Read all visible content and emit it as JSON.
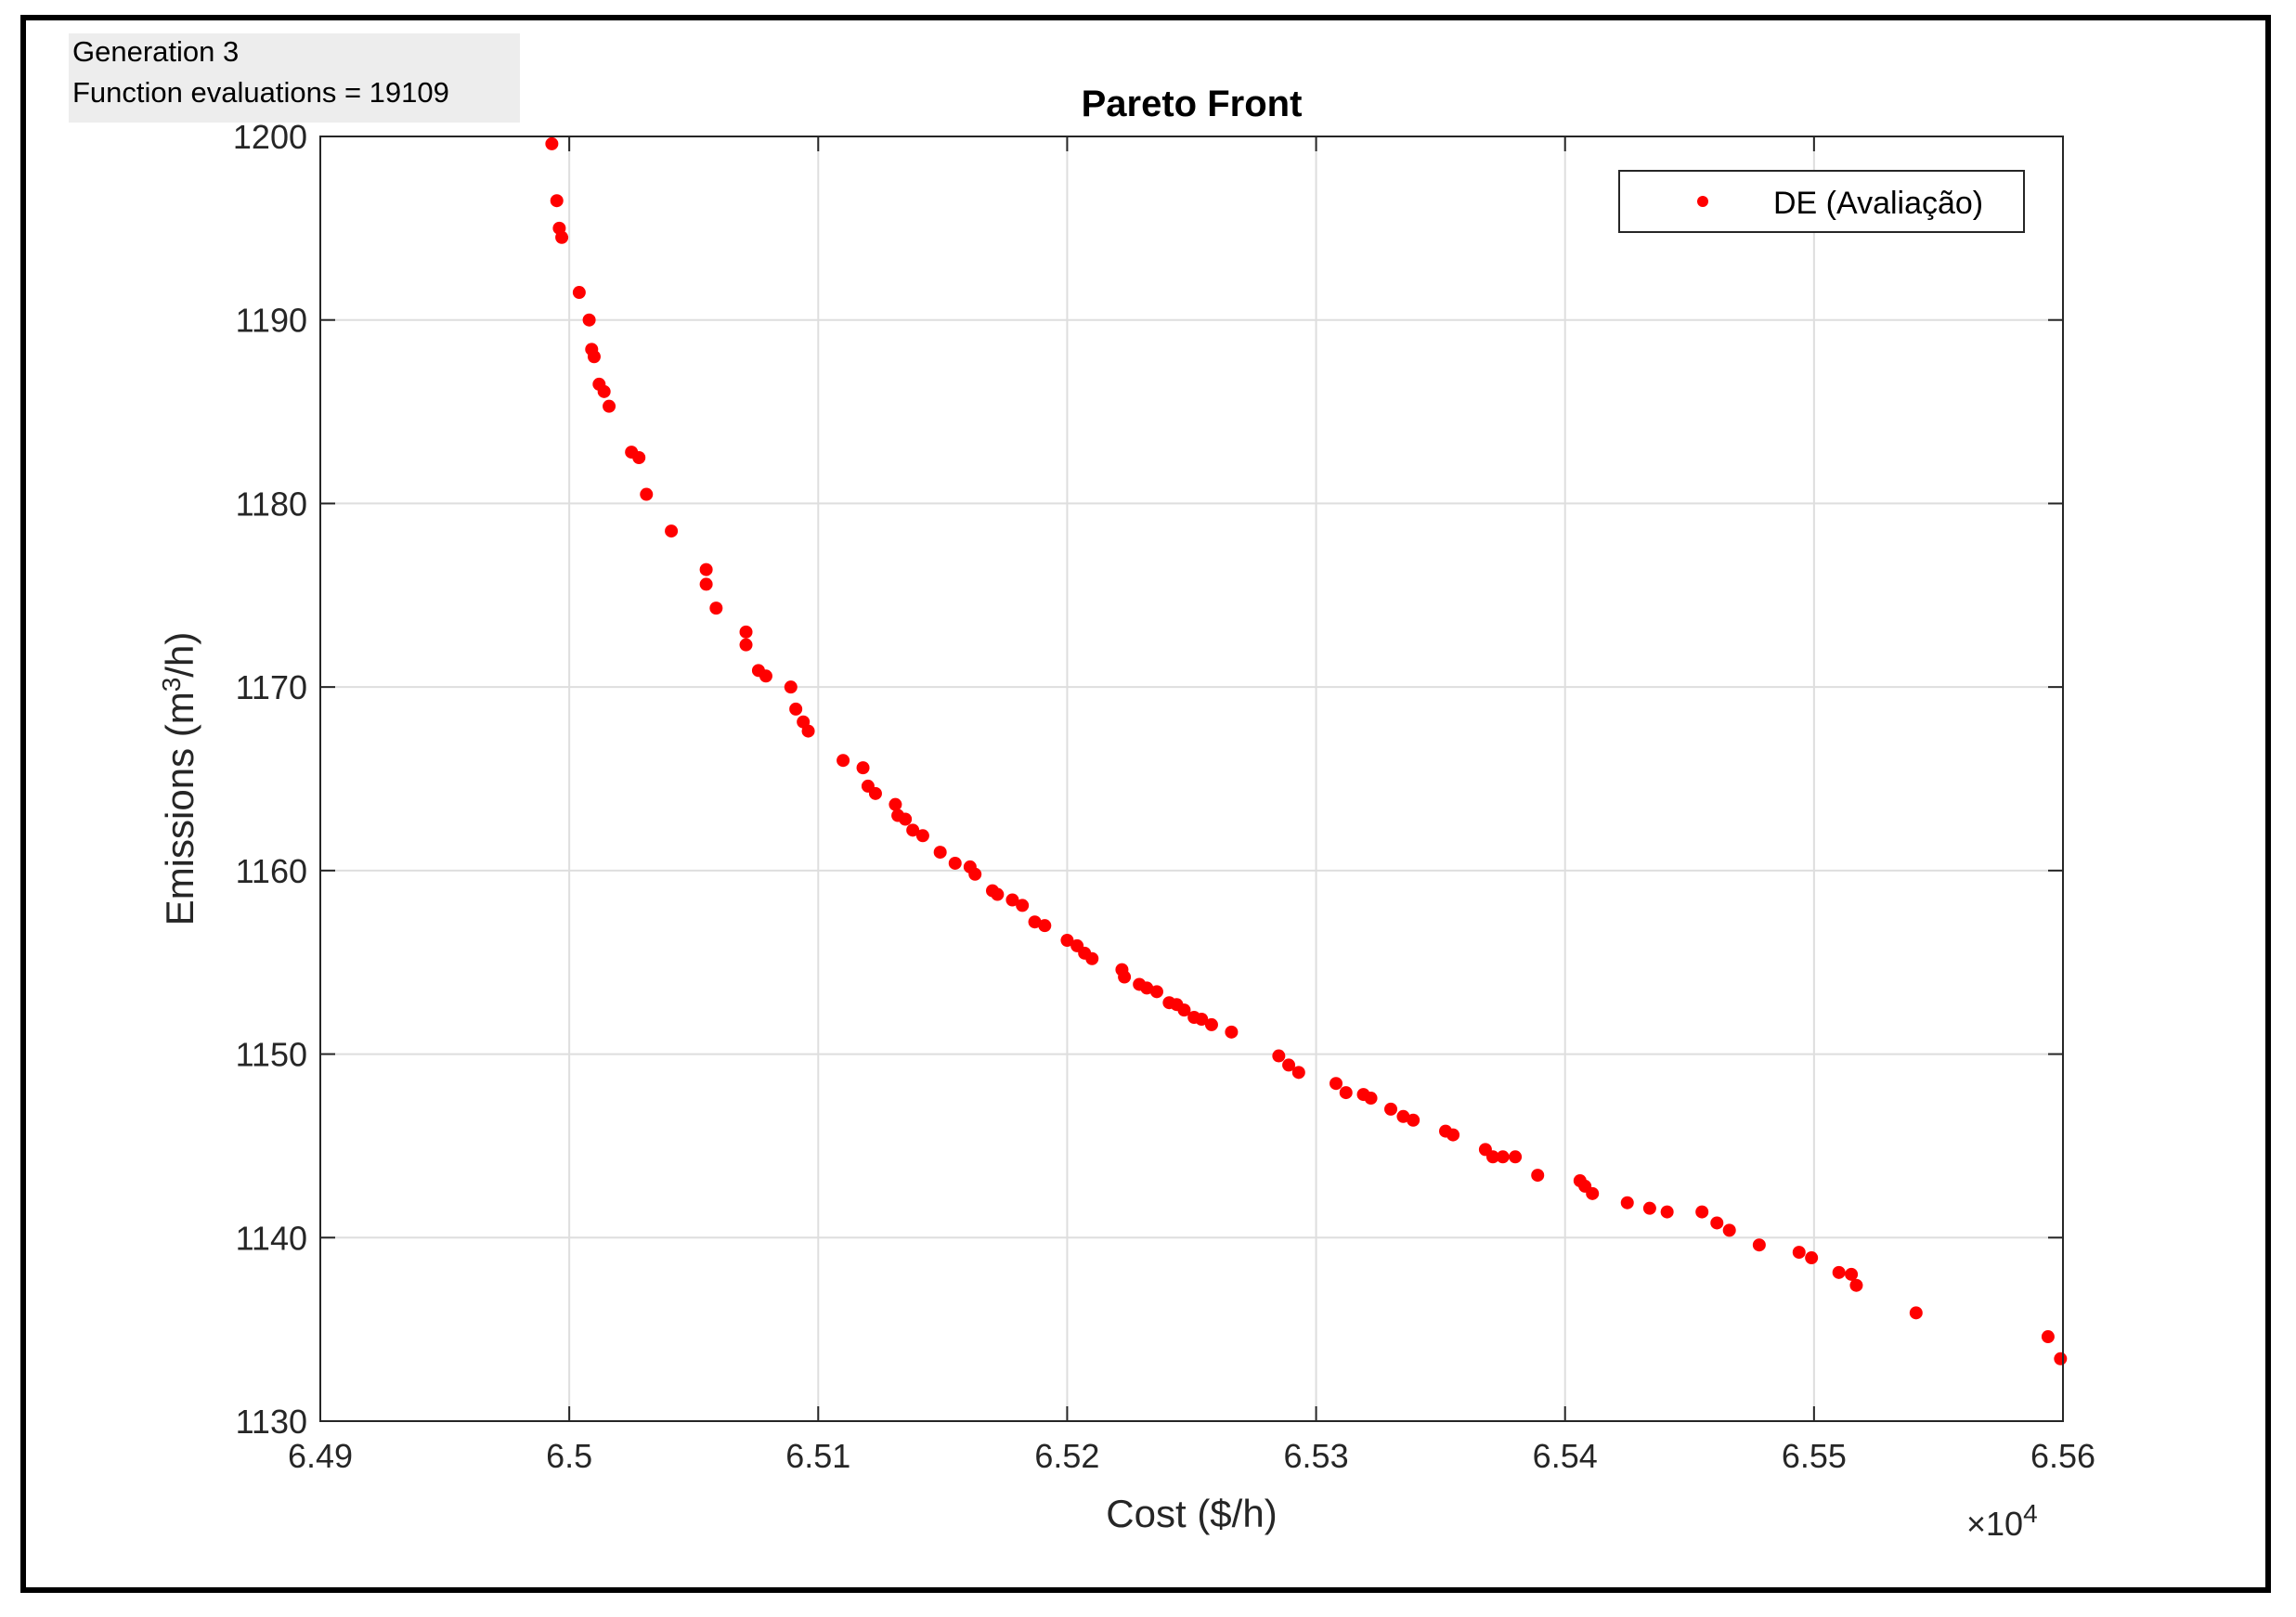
{
  "status": {
    "generation": "Generation 3",
    "evaluations": "Function evaluations = 19109"
  },
  "colors": {
    "marker": "#ff0000",
    "grid": "#dedede",
    "axis": "#262626"
  },
  "chart_data": {
    "type": "scatter",
    "title": "Pareto Front",
    "xlabel": "Cost ($/h)",
    "ylabel_main": "Emissions (m",
    "ylabel_sup": "3",
    "ylabel_end": "/h)",
    "x_exponent_prefix": "×10",
    "x_exponent_power": "4",
    "xlim": [
      6.49,
      6.56
    ],
    "ylim": [
      1130,
      1200
    ],
    "xticks": [
      6.49,
      6.5,
      6.51,
      6.52,
      6.53,
      6.54,
      6.55,
      6.56
    ],
    "xtick_labels": [
      "6.49",
      "6.5",
      "6.51",
      "6.52",
      "6.53",
      "6.54",
      "6.55",
      "6.56"
    ],
    "yticks": [
      1130,
      1140,
      1150,
      1160,
      1170,
      1180,
      1190,
      1200
    ],
    "ytick_labels": [
      "1130",
      "1140",
      "1150",
      "1160",
      "1170",
      "1180",
      "1190",
      "1200"
    ],
    "grid": true,
    "legend_position": "top-right",
    "series": [
      {
        "name": "DE (Avaliação)",
        "color": "#ff0000",
        "marker": "point",
        "points": [
          [
            6.4993,
            1199.6
          ],
          [
            6.4995,
            1196.5
          ],
          [
            6.4996,
            1195.0
          ],
          [
            6.4997,
            1194.5
          ],
          [
            6.5004,
            1191.5
          ],
          [
            6.5008,
            1190.0
          ],
          [
            6.5009,
            1188.4
          ],
          [
            6.501,
            1188.0
          ],
          [
            6.5012,
            1186.5
          ],
          [
            6.5014,
            1186.1
          ],
          [
            6.5016,
            1185.3
          ],
          [
            6.5025,
            1182.8
          ],
          [
            6.5028,
            1182.5
          ],
          [
            6.5031,
            1180.5
          ],
          [
            6.5041,
            1178.5
          ],
          [
            6.5055,
            1176.4
          ],
          [
            6.5055,
            1175.6
          ],
          [
            6.5059,
            1174.3
          ],
          [
            6.5071,
            1173.0
          ],
          [
            6.5071,
            1172.3
          ],
          [
            6.5076,
            1170.9
          ],
          [
            6.5079,
            1170.6
          ],
          [
            6.5089,
            1170.0
          ],
          [
            6.5091,
            1168.8
          ],
          [
            6.5094,
            1168.1
          ],
          [
            6.5096,
            1167.6
          ],
          [
            6.511,
            1166.0
          ],
          [
            6.5118,
            1165.6
          ],
          [
            6.512,
            1164.6
          ],
          [
            6.5123,
            1164.2
          ],
          [
            6.5131,
            1163.6
          ],
          [
            6.5132,
            1163.0
          ],
          [
            6.5135,
            1162.8
          ],
          [
            6.5138,
            1162.2
          ],
          [
            6.5142,
            1161.9
          ],
          [
            6.5149,
            1161.0
          ],
          [
            6.5155,
            1160.4
          ],
          [
            6.5161,
            1160.2
          ],
          [
            6.5163,
            1159.8
          ],
          [
            6.517,
            1158.9
          ],
          [
            6.5172,
            1158.7
          ],
          [
            6.5178,
            1158.4
          ],
          [
            6.5182,
            1158.1
          ],
          [
            6.5187,
            1157.2
          ],
          [
            6.5191,
            1157.0
          ],
          [
            6.52,
            1156.2
          ],
          [
            6.5204,
            1155.9
          ],
          [
            6.5207,
            1155.5
          ],
          [
            6.521,
            1155.2
          ],
          [
            6.5222,
            1154.6
          ],
          [
            6.5223,
            1154.2
          ],
          [
            6.5229,
            1153.8
          ],
          [
            6.5232,
            1153.6
          ],
          [
            6.5236,
            1153.4
          ],
          [
            6.5241,
            1152.8
          ],
          [
            6.5244,
            1152.7
          ],
          [
            6.5247,
            1152.4
          ],
          [
            6.5251,
            1152.0
          ],
          [
            6.5254,
            1151.9
          ],
          [
            6.5258,
            1151.6
          ],
          [
            6.5266,
            1151.2
          ],
          [
            6.5285,
            1149.9
          ],
          [
            6.5289,
            1149.4
          ],
          [
            6.5293,
            1149.0
          ],
          [
            6.5308,
            1148.4
          ],
          [
            6.5312,
            1147.9
          ],
          [
            6.5319,
            1147.8
          ],
          [
            6.5322,
            1147.6
          ],
          [
            6.533,
            1147.0
          ],
          [
            6.5335,
            1146.6
          ],
          [
            6.5339,
            1146.4
          ],
          [
            6.5352,
            1145.8
          ],
          [
            6.5355,
            1145.6
          ],
          [
            6.5368,
            1144.8
          ],
          [
            6.5371,
            1144.4
          ],
          [
            6.5375,
            1144.4
          ],
          [
            6.538,
            1144.4
          ],
          [
            6.5389,
            1143.4
          ],
          [
            6.5406,
            1143.1
          ],
          [
            6.5408,
            1142.8
          ],
          [
            6.5411,
            1142.4
          ],
          [
            6.5425,
            1141.9
          ],
          [
            6.5434,
            1141.6
          ],
          [
            6.5441,
            1141.4
          ],
          [
            6.5455,
            1141.4
          ],
          [
            6.5461,
            1140.8
          ],
          [
            6.5466,
            1140.4
          ],
          [
            6.5478,
            1139.6
          ],
          [
            6.5494,
            1139.2
          ],
          [
            6.5499,
            1138.9
          ],
          [
            6.551,
            1138.1
          ],
          [
            6.5515,
            1138.0
          ],
          [
            6.5517,
            1137.4
          ],
          [
            6.5541,
            1135.9
          ],
          [
            6.5594,
            1134.6
          ],
          [
            6.5599,
            1133.4
          ]
        ]
      }
    ]
  }
}
